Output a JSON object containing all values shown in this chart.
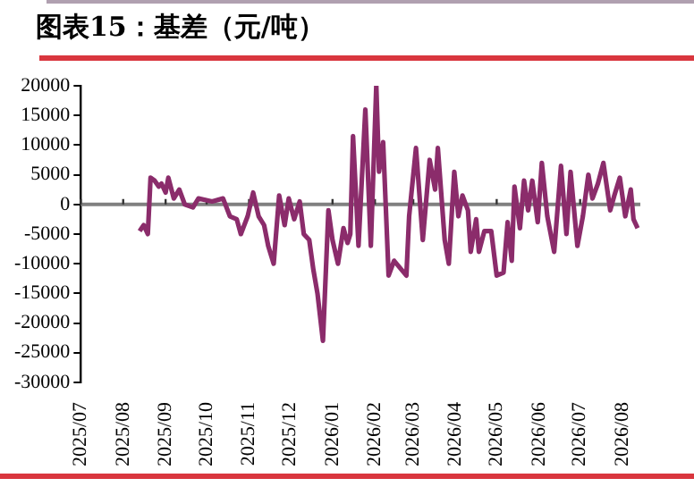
{
  "chart_data": {
    "type": "line",
    "title": "图表15：基差（元/吨）",
    "xlim": [
      "2025-07-01",
      "2026-08-14"
    ],
    "xticks": [
      {
        "value": "2025-07",
        "label": "2025/07"
      },
      {
        "value": "2025-08",
        "label": "2025/08"
      },
      {
        "value": "2025-09",
        "label": "2025/09"
      },
      {
        "value": "2025-10",
        "label": "2025/10"
      },
      {
        "value": "2025-11",
        "label": "2025/11"
      },
      {
        "value": "2025-12",
        "label": "2025/12"
      },
      {
        "value": "2026-01",
        "label": "2026/01"
      },
      {
        "value": "2026-02",
        "label": "2026/02"
      },
      {
        "value": "2026-03",
        "label": "2026/03"
      },
      {
        "value": "2026-04",
        "label": "2026/04"
      },
      {
        "value": "2026-05",
        "label": "2026/05"
      },
      {
        "value": "2026-06",
        "label": "2026/06"
      },
      {
        "value": "2026-07",
        "label": "2026/07"
      },
      {
        "value": "2026-08",
        "label": "2026/08"
      }
    ],
    "ylim": [
      -30000,
      20000
    ],
    "yticks": [
      -30000,
      -25000,
      -20000,
      -15000,
      -10000,
      -5000,
      0,
      5000,
      10000,
      15000,
      20000
    ],
    "x": [
      "2025-08-13",
      "2025-08-16",
      "2025-08-19",
      "2025-08-21",
      "2025-08-24",
      "2025-08-27",
      "2025-08-29",
      "2025-09-01",
      "2025-09-03",
      "2025-09-07",
      "2025-09-11",
      "2025-09-15",
      "2025-09-21",
      "2025-09-25",
      "2025-10-05",
      "2025-10-13",
      "2025-10-18",
      "2025-10-23",
      "2025-10-26",
      "2025-10-31",
      "2025-11-04",
      "2025-11-08",
      "2025-11-12",
      "2025-11-15",
      "2025-11-19",
      "2025-11-23",
      "2025-11-27",
      "2025-11-30",
      "2025-12-04",
      "2025-12-08",
      "2025-12-11",
      "2025-12-15",
      "2025-12-18",
      "2025-12-21",
      "2025-12-25",
      "2025-12-29",
      "2026-01-01",
      "2026-01-05",
      "2026-01-09",
      "2026-01-12",
      "2026-01-14",
      "2026-01-16",
      "2026-01-20",
      "2026-01-25",
      "2026-01-29",
      "2026-02-02",
      "2026-02-04",
      "2026-02-07",
      "2026-02-11",
      "2026-02-15",
      "2026-02-24",
      "2026-02-26",
      "2026-03-03",
      "2026-03-08",
      "2026-03-13",
      "2026-03-17",
      "2026-03-19",
      "2026-03-24",
      "2026-03-27",
      "2026-03-31",
      "2026-04-03",
      "2026-04-06",
      "2026-04-10",
      "2026-04-12",
      "2026-04-16",
      "2026-04-18",
      "2026-04-22",
      "2026-04-27",
      "2026-05-01",
      "2026-05-06",
      "2026-05-09",
      "2026-05-12",
      "2026-05-14",
      "2026-05-18",
      "2026-05-21",
      "2026-05-24",
      "2026-05-27",
      "2026-05-31",
      "2026-06-03",
      "2026-06-07",
      "2026-06-12",
      "2026-06-17",
      "2026-06-21",
      "2026-06-24",
      "2026-06-29",
      "2026-07-03",
      "2026-07-07",
      "2026-07-10",
      "2026-07-14",
      "2026-07-18",
      "2026-07-23",
      "2026-07-26",
      "2026-07-30",
      "2026-08-03",
      "2026-08-07",
      "2026-08-09",
      "2026-08-12"
    ],
    "series": [
      {
        "color": "#8b2c6b",
        "values": [
          -4500,
          -3500,
          -5000,
          4500,
          4000,
          3000,
          3500,
          2000,
          4500,
          1000,
          2500,
          0,
          -500,
          1000,
          500,
          1000,
          -2000,
          -2500,
          -5000,
          -2000,
          2000,
          -2000,
          -3500,
          -7000,
          -10000,
          1500,
          -3500,
          1000,
          -2500,
          500,
          -5000,
          -6000,
          -11000,
          -15000,
          -23000,
          -1000,
          -6000,
          -10000,
          -4000,
          -6500,
          -5000,
          11500,
          -7000,
          16000,
          -7000,
          20000,
          5500,
          10500,
          -12000,
          -9500,
          -12000,
          -2000,
          9500,
          -6000,
          7500,
          2500,
          9500,
          -6000,
          -10000,
          5500,
          -2000,
          1500,
          -1000,
          -8000,
          -2500,
          -8000,
          -4500,
          -4500,
          -12000,
          -11500,
          -3000,
          -9500,
          3000,
          -4000,
          4000,
          -1000,
          4000,
          -3000,
          7000,
          -2000,
          -8000,
          6500,
          -5000,
          5500,
          -7000,
          -2000,
          5000,
          1000,
          3500,
          7000,
          -1000,
          1500,
          4500,
          -2000,
          2500,
          -2500,
          -4000
        ]
      }
    ]
  }
}
